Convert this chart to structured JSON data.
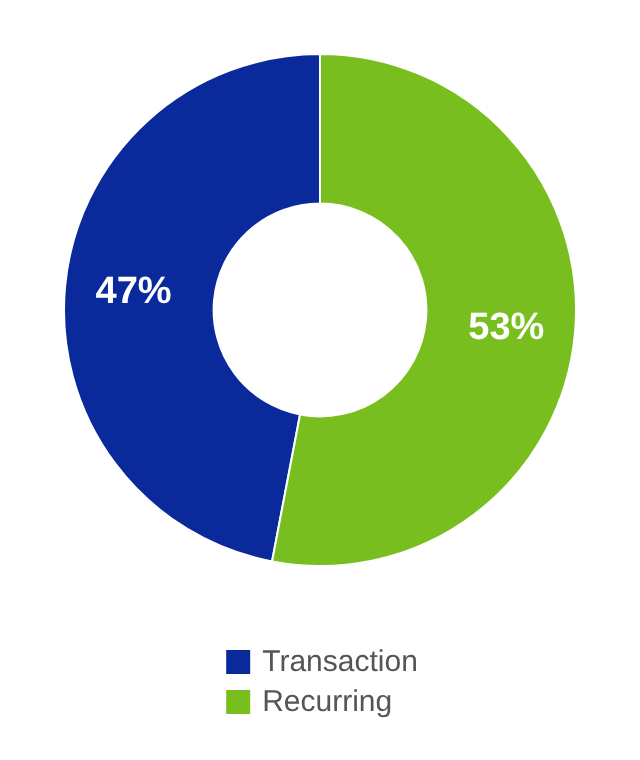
{
  "chart_data": {
    "type": "donut",
    "categories": [
      "Transaction",
      "Recurring"
    ],
    "values": [
      47,
      53
    ],
    "colors": [
      "#0a2a9c",
      "#78be1e"
    ],
    "value_labels": [
      "47%",
      "53%"
    ],
    "legend": "bottom"
  }
}
